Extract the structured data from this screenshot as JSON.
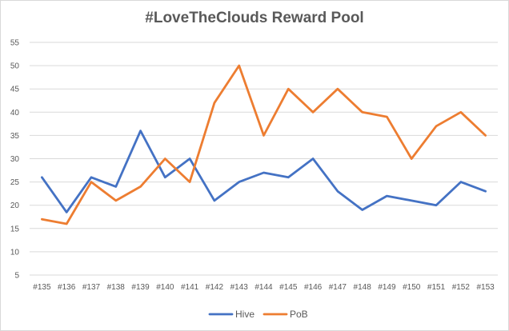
{
  "chart_data": {
    "type": "line",
    "title": "#LoveTheClouds Reward Pool",
    "xlabel": "",
    "ylabel": "",
    "categories": [
      "#135",
      "#136",
      "#137",
      "#138",
      "#139",
      "#140",
      "#141",
      "#142",
      "#143",
      "#144",
      "#145",
      "#146",
      "#147",
      "#148",
      "#149",
      "#150",
      "#151",
      "#152",
      "#153"
    ],
    "ylim": [
      5,
      55
    ],
    "yticks": [
      5,
      10,
      15,
      20,
      25,
      30,
      35,
      40,
      45,
      50,
      55
    ],
    "grid": true,
    "legend": "bottom",
    "series": [
      {
        "name": "Hive",
        "color": "#4472c4",
        "values": [
          26,
          18.5,
          26,
          24,
          36,
          26,
          30,
          21,
          25,
          27,
          26,
          30,
          23,
          19,
          22,
          21,
          20,
          25,
          23
        ]
      },
      {
        "name": "PoB",
        "color": "#ed7d31",
        "values": [
          17,
          16,
          25,
          21,
          24,
          30,
          25,
          42,
          50,
          35,
          45,
          40,
          45,
          40,
          39,
          30,
          37,
          40,
          35
        ]
      }
    ]
  }
}
